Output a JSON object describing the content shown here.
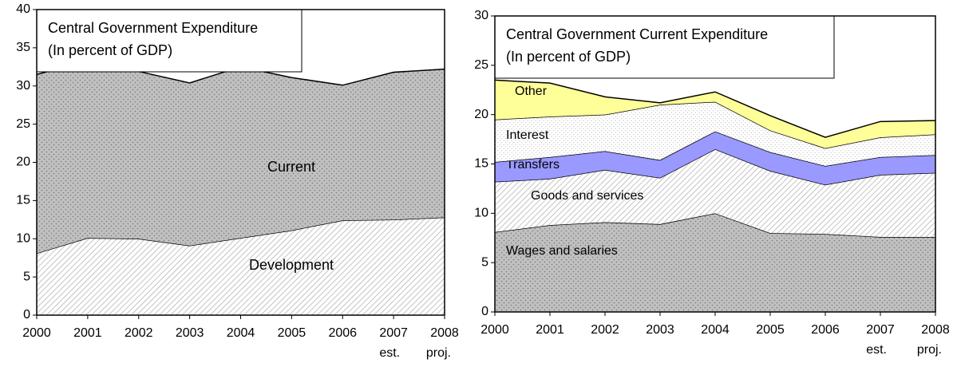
{
  "chart_data": [
    {
      "type": "stacked-area",
      "title": "Central Government Expenditure",
      "subtitle": "(In percent of GDP)",
      "categories": [
        "2000",
        "2001",
        "2002",
        "2003",
        "2004",
        "2005",
        "2006",
        "2007",
        "2008"
      ],
      "category_notes": [
        null,
        null,
        null,
        null,
        null,
        null,
        null,
        "est.",
        "proj."
      ],
      "ylim": [
        0,
        40
      ],
      "yticks": [
        0,
        5,
        10,
        15,
        20,
        25,
        30,
        35,
        40
      ],
      "series": [
        {
          "name": "Development",
          "color": "#ffffff",
          "pattern": "hatch",
          "values": [
            8.1,
            10.1,
            10.0,
            9.1,
            10.1,
            11.1,
            12.4,
            12.5,
            12.8
          ]
        },
        {
          "name": "Current",
          "color": "#c0c0c0",
          "pattern": "dots",
          "values": [
            23.4,
            23.2,
            21.9,
            21.3,
            22.4,
            20.0,
            17.7,
            19.3,
            19.4
          ]
        }
      ]
    },
    {
      "type": "stacked-area",
      "title": "Central Government Current Expenditure",
      "subtitle": "(In percent of GDP)",
      "categories": [
        "2000",
        "2001",
        "2002",
        "2003",
        "2004",
        "2005",
        "2006",
        "2007",
        "2008"
      ],
      "category_notes": [
        null,
        null,
        null,
        null,
        null,
        null,
        null,
        "est.",
        "proj."
      ],
      "ylim": [
        0,
        30
      ],
      "yticks": [
        0,
        5,
        10,
        15,
        20,
        25,
        30
      ],
      "series": [
        {
          "name": "Wages and salaries",
          "color": "#c0c0c0",
          "pattern": "dots",
          "values": [
            8.1,
            8.8,
            9.1,
            8.9,
            10.0,
            8.0,
            7.9,
            7.6,
            7.6
          ]
        },
        {
          "name": "Goods and services",
          "color": "#ffffff",
          "pattern": "hatch",
          "values": [
            5.1,
            4.7,
            5.3,
            4.7,
            6.5,
            6.3,
            5.0,
            6.3,
            6.5
          ]
        },
        {
          "name": "Transfers",
          "color": "#9999ff",
          "pattern": "none",
          "values": [
            2.0,
            2.2,
            1.9,
            1.8,
            1.8,
            1.9,
            1.9,
            1.8,
            1.8
          ]
        },
        {
          "name": "Interest",
          "color": "#ffffff",
          "pattern": "lightdots",
          "values": [
            4.3,
            4.1,
            3.7,
            5.6,
            3.0,
            2.2,
            1.8,
            2.0,
            2.1
          ]
        },
        {
          "name": "Other",
          "color": "#ffff99",
          "pattern": "none",
          "values": [
            4.0,
            3.4,
            1.8,
            0.2,
            1.0,
            1.5,
            1.1,
            1.6,
            1.4
          ]
        }
      ]
    }
  ]
}
